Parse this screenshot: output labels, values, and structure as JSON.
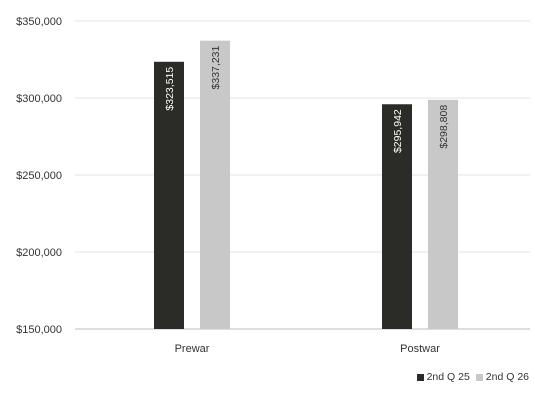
{
  "chart_data": {
    "type": "bar",
    "title": "",
    "xlabel": "",
    "ylabel": "",
    "categories": [
      "Prewar",
      "Postwar"
    ],
    "series": [
      {
        "name": "2nd Q 25",
        "color": "#2b2b27",
        "values": [
          323515,
          295942
        ],
        "labels": [
          "$323,515",
          "$295,942"
        ]
      },
      {
        "name": "2nd Q 26",
        "color": "#c8c8c8",
        "values": [
          337231,
          298808
        ],
        "labels": [
          "$337,231",
          "$298,808"
        ]
      }
    ],
    "ylim": [
      150000,
      350000
    ],
    "yticks": [
      350000,
      300000,
      250000,
      200000,
      150000
    ],
    "ytick_labels": [
      "$350,000",
      "$300,000",
      "$250,000",
      "$200,000",
      "$150,000"
    ],
    "grid": true,
    "legend_position": "bottom-right"
  }
}
